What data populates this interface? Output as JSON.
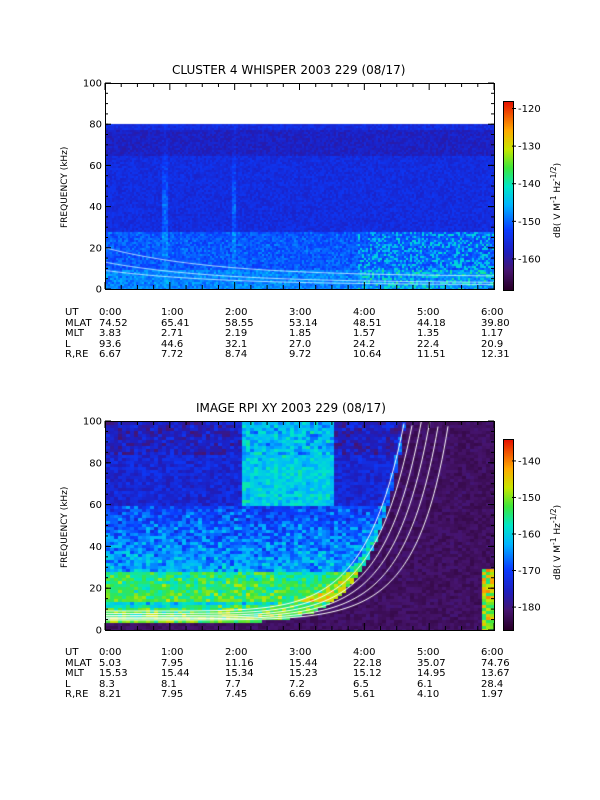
{
  "chart_data": [
    {
      "type": "heatmap",
      "title": "CLUSTER 4 WHISPER 2003 229 (08/17)",
      "ylabel": "FREQUENCY (kHz)",
      "ylim": [
        0,
        100
      ],
      "yticks": [
        "0",
        "20",
        "40",
        "60",
        "80",
        "100"
      ],
      "xticks": [
        "0:00",
        "1:00",
        "2:00",
        "3:00",
        "4:00",
        "5:00",
        "6:00"
      ],
      "xlim": [
        "0:00",
        "6:00"
      ],
      "colorbar": {
        "label": "dB( V M-1 Hz-1/2)",
        "range": [
          -168,
          -118
        ],
        "ticks": [
          "-120",
          "-130",
          "-140",
          "-150",
          "-160"
        ]
      },
      "data_max_frequency": 80,
      "ephemeris": {
        "labels": [
          "UT",
          "MLAT",
          "MLT",
          "L",
          "R,RE"
        ],
        "columns": [
          [
            "0:00",
            "74.52",
            "3.83",
            "93.6",
            "6.67"
          ],
          [
            "1:00",
            "65.41",
            "2.71",
            "44.6",
            "7.72"
          ],
          [
            "2:00",
            "58.55",
            "2.19",
            "32.1",
            "8.74"
          ],
          [
            "3:00",
            "53.14",
            "1.85",
            "27.0",
            "9.72"
          ],
          [
            "4:00",
            "48.51",
            "1.57",
            "24.2",
            "10.64"
          ],
          [
            "5:00",
            "44.18",
            "1.35",
            "22.4",
            "11.51"
          ],
          [
            "6:00",
            "39.80",
            "1.17",
            "20.9",
            "12.31"
          ]
        ]
      }
    },
    {
      "type": "heatmap",
      "title": "IMAGE RPI XY 2003 229 (08/17)",
      "ylabel": "FREQUENCY (kHz)",
      "ylim": [
        0,
        100
      ],
      "yticks": [
        "0",
        "20",
        "40",
        "60",
        "80",
        "100"
      ],
      "xticks": [
        "0:00",
        "1:00",
        "2:00",
        "3:00",
        "4:00",
        "5:00",
        "6:00"
      ],
      "xlim": [
        "0:00",
        "6:00"
      ],
      "colorbar": {
        "label": "dB( V M-1 Hz-1/2)",
        "range": [
          -186,
          -134
        ],
        "ticks": [
          "-140",
          "-150",
          "-160",
          "-170",
          "-180"
        ]
      },
      "ephemeris": {
        "labels": [
          "UT",
          "MLAT",
          "MLT",
          "L",
          "R,RE"
        ],
        "columns": [
          [
            "0:00",
            "5.03",
            "15.53",
            "8.3",
            "8.21"
          ],
          [
            "1:00",
            "7.95",
            "15.44",
            "8.1",
            "7.95"
          ],
          [
            "2:00",
            "11.16",
            "15.34",
            "7.7",
            "7.45"
          ],
          [
            "3:00",
            "15.44",
            "15.23",
            "7.2",
            "6.69"
          ],
          [
            "4:00",
            "22.18",
            "15.12",
            "6.5",
            "5.61"
          ],
          [
            "5:00",
            "35.07",
            "14.95",
            "6.1",
            "4.10"
          ],
          [
            "6:00",
            "74.76",
            "13.67",
            "28.4",
            "1.97"
          ]
        ]
      }
    }
  ]
}
